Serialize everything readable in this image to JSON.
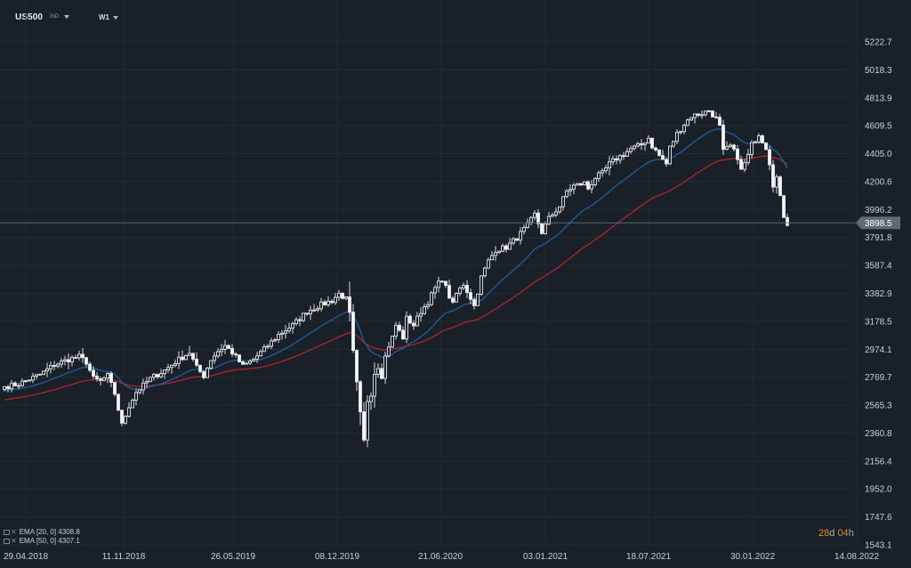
{
  "header": {
    "symbol": "US500",
    "market": "IND",
    "timeframe": "W1"
  },
  "indicators": [
    {
      "name": "EMA [20, 0]",
      "value": "4308.8",
      "color": "#1f5e9e"
    },
    {
      "name": "EMA [50, 0]",
      "value": "4307.1",
      "color": "#b0242c"
    }
  ],
  "countdown": {
    "days": "28",
    "d_label": "d",
    "hours": "04",
    "h_label": "h"
  },
  "current_price": "3898.5",
  "chart_data": {
    "type": "candlestick",
    "y_ticks": [
      "5222.7",
      "5018.3",
      "4813.9",
      "4609.5",
      "4405.0",
      "4200.6",
      "3996.2",
      "3791.8",
      "3587.4",
      "3382.9",
      "3178.5",
      "2974.1",
      "2769.7",
      "2565.3",
      "2360.8",
      "2156.4",
      "1952.0",
      "1747.6",
      "1543.1"
    ],
    "x_ticks": [
      "29.04.2018",
      "11.11.2018",
      "26.05.2019",
      "08.12.2019",
      "21.06.2020",
      "03.01.2021",
      "18.07.2021",
      "30.01.2022",
      "14.08.2022"
    ],
    "ylim": [
      1543.1,
      5222.7
    ],
    "close_anchors": [
      [
        0,
        2700
      ],
      [
        4,
        2720
      ],
      [
        10,
        2790
      ],
      [
        14,
        2860
      ],
      [
        18,
        2900
      ],
      [
        21,
        2920
      ],
      [
        23,
        2880
      ],
      [
        25,
        2760
      ],
      [
        27,
        2740
      ],
      [
        29,
        2780
      ],
      [
        31,
        2650
      ],
      [
        33,
        2420
      ],
      [
        35,
        2560
      ],
      [
        37,
        2660
      ],
      [
        41,
        2760
      ],
      [
        45,
        2820
      ],
      [
        49,
        2900
      ],
      [
        52,
        2950
      ],
      [
        54,
        2840
      ],
      [
        56,
        2780
      ],
      [
        58,
        2900
      ],
      [
        60,
        2960
      ],
      [
        62,
        3000
      ],
      [
        64,
        2950
      ],
      [
        67,
        2850
      ],
      [
        70,
        2900
      ],
      [
        74,
        3000
      ],
      [
        77,
        3080
      ],
      [
        81,
        3150
      ],
      [
        85,
        3250
      ],
      [
        89,
        3300
      ],
      [
        92,
        3330
      ],
      [
        94,
        3380
      ],
      [
        96,
        3340
      ],
      [
        97,
        3230
      ],
      [
        98,
        2950
      ],
      [
        99,
        2720
      ],
      [
        100,
        2500
      ],
      [
        101,
        2300
      ],
      [
        102,
        2600
      ],
      [
        103,
        2650
      ],
      [
        104,
        2800
      ],
      [
        105,
        2850
      ],
      [
        106,
        2780
      ],
      [
        107,
        2920
      ],
      [
        108,
        3000
      ],
      [
        109,
        3060
      ],
      [
        110,
        3150
      ],
      [
        112,
        3060
      ],
      [
        113,
        3200
      ],
      [
        115,
        3150
      ],
      [
        117,
        3250
      ],
      [
        119,
        3320
      ],
      [
        121,
        3420
      ],
      [
        123,
        3490
      ],
      [
        125,
        3360
      ],
      [
        126,
        3300
      ],
      [
        127,
        3380
      ],
      [
        129,
        3450
      ],
      [
        131,
        3350
      ],
      [
        132,
        3290
      ],
      [
        134,
        3500
      ],
      [
        136,
        3620
      ],
      [
        138,
        3700
      ],
      [
        141,
        3720
      ],
      [
        144,
        3790
      ],
      [
        147,
        3880
      ],
      [
        149,
        3960
      ],
      [
        151,
        3830
      ],
      [
        153,
        3930
      ],
      [
        156,
        4020
      ],
      [
        158,
        4130
      ],
      [
        160,
        4170
      ],
      [
        163,
        4190
      ],
      [
        164,
        4150
      ],
      [
        166,
        4230
      ],
      [
        168,
        4260
      ],
      [
        170,
        4330
      ],
      [
        172,
        4370
      ],
      [
        174,
        4400
      ],
      [
        176,
        4440
      ],
      [
        179,
        4470
      ],
      [
        181,
        4520
      ],
      [
        182,
        4460
      ],
      [
        184,
        4390
      ],
      [
        186,
        4330
      ],
      [
        187,
        4450
      ],
      [
        189,
        4550
      ],
      [
        191,
        4620
      ],
      [
        193,
        4680
      ],
      [
        196,
        4700
      ],
      [
        198,
        4720
      ],
      [
        200,
        4660
      ],
      [
        201,
        4600
      ],
      [
        202,
        4420
      ],
      [
        204,
        4460
      ],
      [
        206,
        4380
      ],
      [
        207,
        4280
      ],
      [
        209,
        4390
      ],
      [
        210,
        4470
      ],
      [
        212,
        4550
      ],
      [
        214,
        4450
      ],
      [
        215,
        4340
      ],
      [
        216,
        4180
      ],
      [
        217,
        4230
      ],
      [
        218,
        4080
      ],
      [
        219,
        3950
      ],
      [
        220,
        3880
      ]
    ],
    "ema20_start": 2670,
    "ema50_start": 2600
  }
}
